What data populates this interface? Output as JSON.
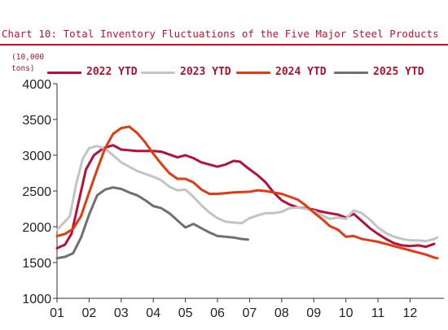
{
  "title": "Chart 10: Total Inventory Fluctuations of the Five Major Steel Products",
  "unit": [
    "(10,000",
    "tons)"
  ],
  "chart_data": {
    "type": "line",
    "title": "Chart 10: Total Inventory Fluctuations of the Five Major Steel Products",
    "xlabel": "",
    "ylabel": "(10,000 tons)",
    "ylim": [
      1000,
      4000
    ],
    "yticks": [
      "1000",
      "1500",
      "2000",
      "2500",
      "3000",
      "3500",
      "4000"
    ],
    "xlim": [
      1,
      12.85
    ],
    "xticks": [
      "01",
      "02",
      "03",
      "04",
      "05",
      "06",
      "07",
      "08",
      "09",
      "10",
      "11",
      "12"
    ],
    "grid": false,
    "legend_position": "top",
    "series": [
      {
        "name": "2022 YTD",
        "color": "#b5123a",
        "points": [
          [
            1.0,
            1700
          ],
          [
            1.25,
            1750
          ],
          [
            1.45,
            1900
          ],
          [
            1.65,
            2300
          ],
          [
            1.9,
            2800
          ],
          [
            2.15,
            3000
          ],
          [
            2.45,
            3100
          ],
          [
            2.75,
            3140
          ],
          [
            3.0,
            3080
          ],
          [
            3.5,
            3060
          ],
          [
            4.0,
            3060
          ],
          [
            4.25,
            3050
          ],
          [
            4.5,
            3010
          ],
          [
            4.75,
            2970
          ],
          [
            5.0,
            3000
          ],
          [
            5.25,
            2960
          ],
          [
            5.5,
            2900
          ],
          [
            5.75,
            2870
          ],
          [
            6.0,
            2840
          ],
          [
            6.25,
            2870
          ],
          [
            6.5,
            2920
          ],
          [
            6.7,
            2910
          ],
          [
            6.95,
            2820
          ],
          [
            7.25,
            2720
          ],
          [
            7.5,
            2620
          ],
          [
            7.75,
            2480
          ],
          [
            8.0,
            2370
          ],
          [
            8.25,
            2310
          ],
          [
            8.5,
            2270
          ],
          [
            8.75,
            2260
          ],
          [
            9.0,
            2240
          ],
          [
            9.25,
            2210
          ],
          [
            9.5,
            2190
          ],
          [
            9.75,
            2170
          ],
          [
            10.0,
            2130
          ],
          [
            10.25,
            2180
          ],
          [
            10.5,
            2080
          ],
          [
            10.75,
            1980
          ],
          [
            11.0,
            1900
          ],
          [
            11.25,
            1830
          ],
          [
            11.5,
            1770
          ],
          [
            11.75,
            1740
          ],
          [
            12.0,
            1730
          ],
          [
            12.25,
            1740
          ],
          [
            12.5,
            1720
          ],
          [
            12.75,
            1760
          ]
        ]
      },
      {
        "name": "2023 YTD",
        "color": "#c4c4c4",
        "points": [
          [
            1.0,
            1960
          ],
          [
            1.2,
            2050
          ],
          [
            1.4,
            2150
          ],
          [
            1.6,
            2600
          ],
          [
            1.8,
            2950
          ],
          [
            2.0,
            3100
          ],
          [
            2.25,
            3130
          ],
          [
            2.5,
            3090
          ],
          [
            2.75,
            3000
          ],
          [
            3.0,
            2900
          ],
          [
            3.5,
            2780
          ],
          [
            4.0,
            2700
          ],
          [
            4.25,
            2650
          ],
          [
            4.5,
            2560
          ],
          [
            4.75,
            2510
          ],
          [
            5.0,
            2520
          ],
          [
            5.25,
            2420
          ],
          [
            5.5,
            2300
          ],
          [
            5.75,
            2200
          ],
          [
            6.0,
            2120
          ],
          [
            6.25,
            2070
          ],
          [
            6.5,
            2060
          ],
          [
            6.75,
            2050
          ],
          [
            7.0,
            2120
          ],
          [
            7.25,
            2160
          ],
          [
            7.5,
            2190
          ],
          [
            7.75,
            2190
          ],
          [
            8.0,
            2210
          ],
          [
            8.25,
            2260
          ],
          [
            8.5,
            2270
          ],
          [
            8.75,
            2250
          ],
          [
            9.0,
            2220
          ],
          [
            9.25,
            2160
          ],
          [
            9.5,
            2110
          ],
          [
            9.75,
            2130
          ],
          [
            10.0,
            2110
          ],
          [
            10.25,
            2230
          ],
          [
            10.5,
            2190
          ],
          [
            10.75,
            2100
          ],
          [
            11.0,
            1990
          ],
          [
            11.25,
            1910
          ],
          [
            11.5,
            1860
          ],
          [
            11.75,
            1830
          ],
          [
            12.0,
            1810
          ],
          [
            12.25,
            1810
          ],
          [
            12.5,
            1800
          ],
          [
            12.75,
            1830
          ],
          [
            12.85,
            1850
          ]
        ]
      },
      {
        "name": "2024 YTD",
        "color": "#e23b12",
        "points": [
          [
            1.0,
            1870
          ],
          [
            1.25,
            1900
          ],
          [
            1.5,
            1970
          ],
          [
            1.75,
            2150
          ],
          [
            2.0,
            2480
          ],
          [
            2.25,
            2800
          ],
          [
            2.5,
            3100
          ],
          [
            2.75,
            3300
          ],
          [
            3.0,
            3380
          ],
          [
            3.25,
            3400
          ],
          [
            3.5,
            3310
          ],
          [
            3.75,
            3180
          ],
          [
            4.0,
            3020
          ],
          [
            4.25,
            2880
          ],
          [
            4.5,
            2750
          ],
          [
            4.75,
            2670
          ],
          [
            5.0,
            2670
          ],
          [
            5.25,
            2620
          ],
          [
            5.5,
            2520
          ],
          [
            5.75,
            2460
          ],
          [
            6.0,
            2460
          ],
          [
            6.5,
            2480
          ],
          [
            7.0,
            2490
          ],
          [
            7.25,
            2510
          ],
          [
            7.5,
            2500
          ],
          [
            7.75,
            2480
          ],
          [
            8.0,
            2460
          ],
          [
            8.25,
            2420
          ],
          [
            8.5,
            2380
          ],
          [
            8.75,
            2300
          ],
          [
            9.0,
            2200
          ],
          [
            9.25,
            2110
          ],
          [
            9.5,
            2010
          ],
          [
            9.75,
            1960
          ],
          [
            10.0,
            1860
          ],
          [
            10.25,
            1870
          ],
          [
            10.5,
            1830
          ],
          [
            10.75,
            1810
          ],
          [
            11.0,
            1790
          ],
          [
            11.25,
            1760
          ],
          [
            11.5,
            1730
          ],
          [
            11.75,
            1700
          ],
          [
            12.0,
            1670
          ],
          [
            12.25,
            1640
          ],
          [
            12.5,
            1610
          ],
          [
            12.75,
            1570
          ],
          [
            12.85,
            1560
          ]
        ]
      },
      {
        "name": "2025 YTD",
        "color": "#707070",
        "points": [
          [
            1.0,
            1560
          ],
          [
            1.25,
            1580
          ],
          [
            1.5,
            1630
          ],
          [
            1.75,
            1850
          ],
          [
            2.0,
            2170
          ],
          [
            2.25,
            2440
          ],
          [
            2.5,
            2520
          ],
          [
            2.75,
            2550
          ],
          [
            3.0,
            2530
          ],
          [
            3.25,
            2480
          ],
          [
            3.5,
            2440
          ],
          [
            3.75,
            2370
          ],
          [
            4.0,
            2290
          ],
          [
            4.25,
            2260
          ],
          [
            4.5,
            2190
          ],
          [
            4.75,
            2090
          ],
          [
            5.0,
            1990
          ],
          [
            5.25,
            2040
          ],
          [
            5.5,
            1980
          ],
          [
            5.75,
            1920
          ],
          [
            6.0,
            1870
          ],
          [
            6.25,
            1860
          ],
          [
            6.5,
            1850
          ],
          [
            6.75,
            1830
          ],
          [
            6.95,
            1820
          ]
        ]
      }
    ]
  }
}
